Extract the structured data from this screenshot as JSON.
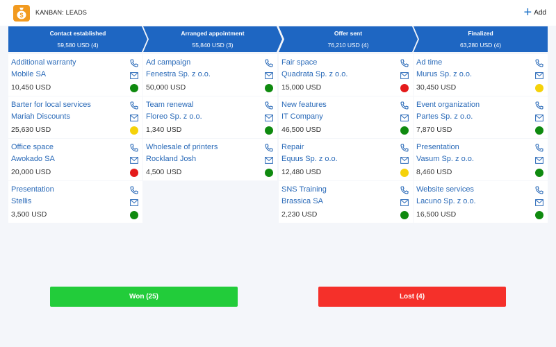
{
  "header": {
    "title": "KANBAN: LEADS",
    "add_label": "Add",
    "app_icon": "money-bag-icon"
  },
  "colors": {
    "stage_blue": "#1e66c2",
    "link_blue": "#2a6ab8",
    "green": "#0f8a0f",
    "yellow": "#f5d20a",
    "red": "#e41a1a",
    "won": "#22cc3a",
    "lost": "#f5302a"
  },
  "stages": [
    {
      "title": "Contact established",
      "sum": "59,580 USD (4)",
      "cards": [
        {
          "title": "Additional warranty",
          "company": "Mobile SA",
          "amount": "10,450 USD",
          "status": "green"
        },
        {
          "title": "Barter for local services",
          "company": "Mariah Discounts",
          "amount": "25,630 USD",
          "status": "yellow"
        },
        {
          "title": "Office space",
          "company": "Awokado SA",
          "amount": "20,000 USD",
          "status": "red"
        },
        {
          "title": "Presentation",
          "company": "Stellis",
          "amount": "3,500 USD",
          "status": "green"
        }
      ]
    },
    {
      "title": "Arranged appointment",
      "sum": "55,840 USD (3)",
      "cards": [
        {
          "title": "Ad campaign",
          "company": "Fenestra Sp. z o.o.",
          "amount": "50,000 USD",
          "status": "green"
        },
        {
          "title": "Team renewal",
          "company": "Floreo Sp. z o.o.",
          "amount": "1,340 USD",
          "status": "green"
        },
        {
          "title": "Wholesale of printers",
          "company": "Rockland Josh",
          "amount": "4,500 USD",
          "status": "green"
        }
      ]
    },
    {
      "title": "Offer sent",
      "sum": "76,210 USD (4)",
      "cards": [
        {
          "title": "Fair space",
          "company": "Quadrata Sp. z o.o.",
          "amount": "15,000 USD",
          "status": "red"
        },
        {
          "title": "New features",
          "company": "IT Company",
          "amount": "46,500 USD",
          "status": "green"
        },
        {
          "title": "Repair",
          "company": "Equus Sp. z o.o.",
          "amount": "12,480 USD",
          "status": "yellow"
        },
        {
          "title": "SNS Training",
          "company": "Brassica SA",
          "amount": "2,230 USD",
          "status": "green"
        }
      ]
    },
    {
      "title": "Finalized",
      "sum": "63,280 USD (4)",
      "cards": [
        {
          "title": "Ad time",
          "company": "Murus Sp. z o.o.",
          "amount": "30,450 USD",
          "status": "yellow"
        },
        {
          "title": "Event organization",
          "company": "Partes Sp. z o.o.",
          "amount": "7,870 USD",
          "status": "green"
        },
        {
          "title": "Presentation",
          "company": "Vasum Sp. z o.o.",
          "amount": "8,460 USD",
          "status": "green"
        },
        {
          "title": "Website services",
          "company": "Lacuno Sp. z o.o.",
          "amount": "16,500 USD",
          "status": "green"
        }
      ]
    }
  ],
  "footer": {
    "won_label": "Won (25)",
    "lost_label": "Lost (4)"
  }
}
